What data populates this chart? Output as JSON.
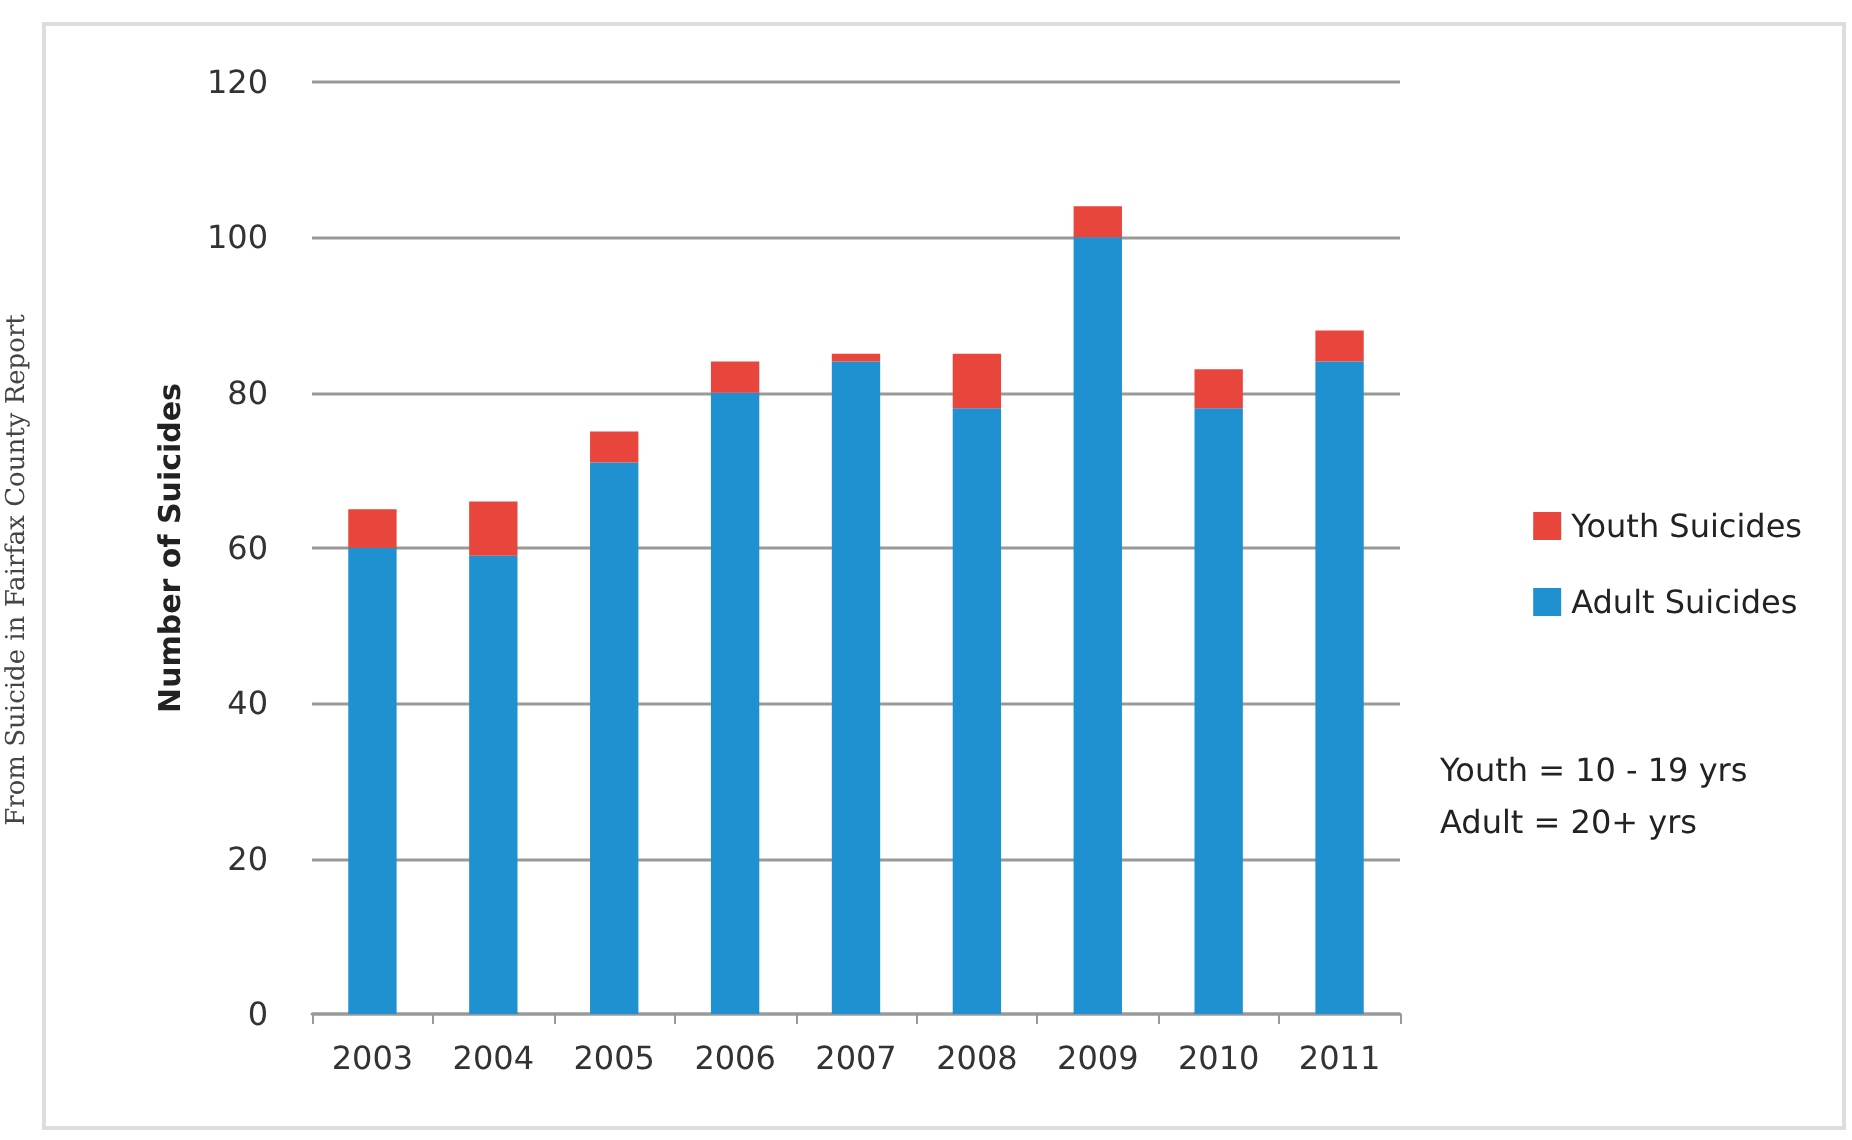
{
  "chart_data": {
    "type": "bar",
    "stacked": true,
    "ylabel": "Number of Suicides",
    "categories": [
      "2003",
      "2004",
      "2005",
      "2006",
      "2007",
      "2008",
      "2009",
      "2010",
      "2011"
    ],
    "series": [
      {
        "name": "Adult Suicides",
        "color": "#1f91d0",
        "values": [
          60,
          59,
          71,
          80,
          84,
          78,
          100,
          78,
          84
        ]
      },
      {
        "name": "Youth Suicides",
        "color": "#e8453c",
        "values": [
          5,
          7,
          4,
          4,
          1,
          7,
          4,
          5,
          4
        ]
      }
    ],
    "ylim": [
      0,
      120
    ],
    "yticks": [
      0,
      20,
      40,
      60,
      80,
      100,
      120
    ],
    "grid": "y",
    "legend": "right",
    "annotations": [
      "Youth = 10 - 19 yrs\nAdult = 20+ yrs",
      "From Suicide in Fairfax County Report"
    ]
  }
}
